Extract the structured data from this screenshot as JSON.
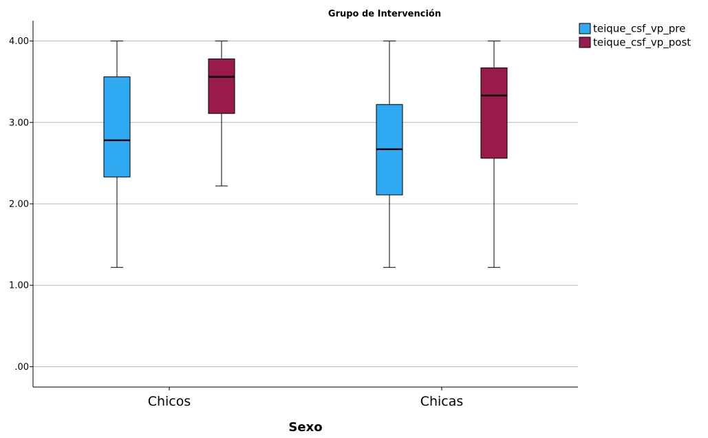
{
  "chart_data": {
    "type": "boxplot",
    "title": "Grupo de Intervención",
    "xlabel": "Sexo",
    "ylabel": "",
    "ylim": [
      -0.25,
      4.25
    ],
    "yticks": [
      0,
      1,
      2,
      3,
      4
    ],
    "ytick_labels": [
      ".00",
      "1.00",
      "2.00",
      "3.00",
      "4.00"
    ],
    "grid": true,
    "legend_position": "top-right",
    "categories": [
      "Chicos",
      "Chicas"
    ],
    "series": [
      {
        "name": "teique_csf_vp_pre",
        "color": "#2fa9f2",
        "boxes": [
          {
            "min": 1.22,
            "q1": 2.33,
            "median": 2.78,
            "q3": 3.56,
            "max": 4.0
          },
          {
            "min": 1.22,
            "q1": 2.11,
            "median": 2.67,
            "q3": 3.22,
            "max": 4.0
          }
        ]
      },
      {
        "name": "teique_csf_vp_post",
        "color": "#9b1a4c",
        "boxes": [
          {
            "min": 2.22,
            "q1": 3.11,
            "median": 3.56,
            "q3": 3.78,
            "max": 4.0
          },
          {
            "min": 1.22,
            "q1": 2.56,
            "median": 3.33,
            "q3": 3.67,
            "max": 4.0
          }
        ]
      }
    ]
  }
}
